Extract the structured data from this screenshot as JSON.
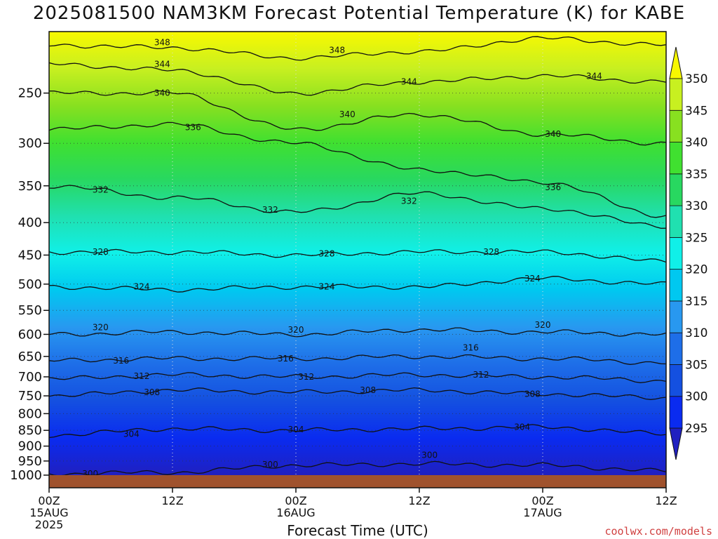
{
  "chart_data": {
    "type": "heatmap",
    "title": "2025081500 NAM3KM Forecast Potential Temperature (K) for KABE",
    "xlabel": "Forecast Time (UTC)",
    "ylabel": "",
    "y_axis": {
      "scale": "log-pressure",
      "range": [
        1000,
        200
      ],
      "ticks": [
        250,
        300,
        350,
        400,
        450,
        500,
        550,
        600,
        650,
        700,
        750,
        800,
        850,
        900,
        950,
        1000
      ]
    },
    "x_axis": {
      "range_hours": [
        0,
        60
      ],
      "ticks": [
        {
          "hour": 0,
          "label": "00Z",
          "sub": "15AUG",
          "sub2": "2025"
        },
        {
          "hour": 12,
          "label": "12Z",
          "sub": "",
          "sub2": ""
        },
        {
          "hour": 24,
          "label": "00Z",
          "sub": "16AUG",
          "sub2": ""
        },
        {
          "hour": 36,
          "label": "12Z",
          "sub": "",
          "sub2": ""
        },
        {
          "hour": 48,
          "label": "00Z",
          "sub": "17AUG",
          "sub2": ""
        },
        {
          "hour": 60,
          "label": "12Z",
          "sub": "",
          "sub2": ""
        }
      ]
    },
    "grid": true,
    "colorbar": {
      "labels": [
        295,
        300,
        305,
        310,
        315,
        320,
        325,
        330,
        335,
        340,
        345,
        350
      ],
      "colors": [
        "#2020c0",
        "#0a2bf0",
        "#1450e0",
        "#1e6ee8",
        "#2898f0",
        "#00c8f0",
        "#10f0e8",
        "#20e0b0",
        "#28d860",
        "#40e030",
        "#88e020",
        "#c8f020",
        "#f8f800"
      ]
    },
    "ground_color": "#a0522d",
    "contours": [
      {
        "value": 300,
        "pressures": [
          995,
          990,
          965,
          960,
          965,
          985
        ]
      },
      {
        "value": 304,
        "pressures": [
          865,
          845,
          850,
          845,
          840,
          860
        ]
      },
      {
        "value": 308,
        "pressures": [
          750,
          735,
          740,
          735,
          745,
          755
        ]
      },
      {
        "value": 312,
        "pressures": [
          705,
          695,
          700,
          695,
          700,
          710
        ]
      },
      {
        "value": 316,
        "pressures": [
          660,
          655,
          655,
          650,
          655,
          665
        ]
      },
      {
        "value": 320,
        "pressures": [
          600,
          595,
          600,
          590,
          595,
          600
        ]
      },
      {
        "value": 324,
        "pressures": [
          505,
          510,
          505,
          505,
          490,
          500
        ]
      },
      {
        "value": 328,
        "pressures": [
          445,
          445,
          450,
          445,
          445,
          460
        ]
      },
      {
        "value": 332,
        "pressures": [
          350,
          365,
          385,
          360,
          380,
          405
        ]
      },
      {
        "value": 336,
        "pressures": [
          285,
          280,
          300,
          330,
          345,
          390
        ]
      },
      {
        "value": 340,
        "pressures": [
          250,
          250,
          285,
          270,
          290,
          300
        ]
      },
      {
        "value": 344,
        "pressures": [
          225,
          230,
          250,
          240,
          235,
          240
        ]
      },
      {
        "value": 348,
        "pressures": [
          210,
          212,
          220,
          215,
          205,
          210
        ]
      }
    ],
    "contour_labels": [
      {
        "text": "300",
        "hour": 4,
        "pressure": 995
      },
      {
        "text": "300",
        "hour": 21.5,
        "pressure": 962
      },
      {
        "text": "300",
        "hour": 37,
        "pressure": 930
      },
      {
        "text": "304",
        "hour": 8,
        "pressure": 862
      },
      {
        "text": "304",
        "hour": 24,
        "pressure": 847
      },
      {
        "text": "304",
        "hour": 46,
        "pressure": 840
      },
      {
        "text": "308",
        "hour": 10,
        "pressure": 740
      },
      {
        "text": "308",
        "hour": 31,
        "pressure": 735
      },
      {
        "text": "308",
        "hour": 47,
        "pressure": 745
      },
      {
        "text": "312",
        "hour": 9,
        "pressure": 698
      },
      {
        "text": "312",
        "hour": 25,
        "pressure": 700
      },
      {
        "text": "312",
        "hour": 42,
        "pressure": 695
      },
      {
        "text": "316",
        "hour": 7,
        "pressure": 660
      },
      {
        "text": "316",
        "hour": 23,
        "pressure": 655
      },
      {
        "text": "316",
        "hour": 41,
        "pressure": 630
      },
      {
        "text": "320",
        "hour": 5,
        "pressure": 585
      },
      {
        "text": "320",
        "hour": 24,
        "pressure": 590
      },
      {
        "text": "320",
        "hour": 48,
        "pressure": 580
      },
      {
        "text": "324",
        "hour": 9,
        "pressure": 505
      },
      {
        "text": "324",
        "hour": 27,
        "pressure": 505
      },
      {
        "text": "324",
        "hour": 47,
        "pressure": 490
      },
      {
        "text": "328",
        "hour": 5,
        "pressure": 445
      },
      {
        "text": "328",
        "hour": 27,
        "pressure": 448
      },
      {
        "text": "328",
        "hour": 43,
        "pressure": 445
      },
      {
        "text": "332",
        "hour": 5,
        "pressure": 355
      },
      {
        "text": "332",
        "hour": 21.5,
        "pressure": 382
      },
      {
        "text": "332",
        "hour": 35,
        "pressure": 370
      },
      {
        "text": "336",
        "hour": 14,
        "pressure": 283
      },
      {
        "text": "336",
        "hour": 49,
        "pressure": 352
      },
      {
        "text": "340",
        "hour": 11,
        "pressure": 250
      },
      {
        "text": "340",
        "hour": 29,
        "pressure": 270
      },
      {
        "text": "340",
        "hour": 49,
        "pressure": 290
      },
      {
        "text": "344",
        "hour": 11,
        "pressure": 225
      },
      {
        "text": "344",
        "hour": 35,
        "pressure": 240
      },
      {
        "text": "344",
        "hour": 53,
        "pressure": 235
      },
      {
        "text": "348",
        "hour": 11,
        "pressure": 208
      },
      {
        "text": "348",
        "hour": 28,
        "pressure": 214
      }
    ]
  },
  "credit": "coolwx.com/models"
}
